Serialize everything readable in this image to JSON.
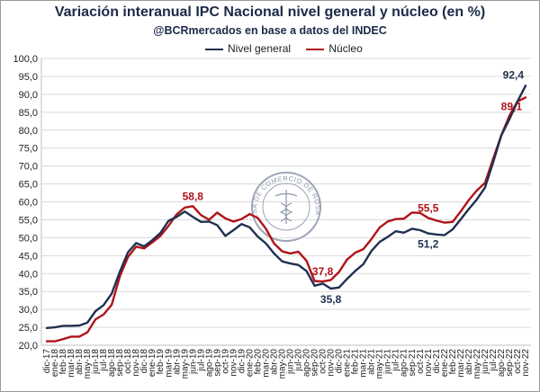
{
  "chart_data": {
    "type": "line",
    "title": "Variación interanual IPC Nacional nivel general y núcleo (en %)",
    "subtitle": "@BCRmercados en base a datos del INDEC",
    "watermark_text": "BOLSA DE COMERCIO DE ROSARIO",
    "ylim": [
      20,
      100
    ],
    "yticks": [
      "20,0",
      "25,0",
      "30,0",
      "35,0",
      "40,0",
      "45,0",
      "50,0",
      "55,0",
      "60,0",
      "65,0",
      "70,0",
      "75,0",
      "80,0",
      "85,0",
      "90,0",
      "95,0",
      "100,0"
    ],
    "grid": true,
    "legend_position": "top",
    "x": [
      "dic-17",
      "ene-18",
      "feb-18",
      "mar-18",
      "abr-18",
      "may-18",
      "jun-18",
      "jul-18",
      "ago-18",
      "sep-18",
      "oct-18",
      "nov-18",
      "dic-18",
      "ene-19",
      "feb-19",
      "mar-19",
      "abr-19",
      "may-19",
      "jun-19",
      "jul-19",
      "ago-19",
      "sep-19",
      "oct-19",
      "nov-19",
      "dic-19",
      "ene-20",
      "feb-20",
      "mar-20",
      "abr-20",
      "may-20",
      "jun-20",
      "jul-20",
      "ago-20",
      "sep-20",
      "oct-20",
      "nov-20",
      "dic-20",
      "ene-21",
      "feb-21",
      "mar-21",
      "abr-21",
      "may-21",
      "jun-21",
      "jul-21",
      "ago-21",
      "sep-21",
      "oct-21",
      "nov-21",
      "dic-21",
      "ene-22",
      "feb-22",
      "mar-22",
      "abr-22",
      "may-22",
      "jun-22",
      "jul-22",
      "ago-22",
      "sep-22",
      "oct-22",
      "nov-22"
    ],
    "series": [
      {
        "name": "Nivel general",
        "color": "#1f3050",
        "values": [
          24.8,
          25.0,
          25.4,
          25.4,
          25.5,
          26.3,
          29.5,
          31.2,
          34.4,
          40.5,
          45.9,
          48.5,
          47.6,
          49.3,
          51.3,
          54.7,
          55.8,
          57.3,
          55.8,
          54.4,
          54.5,
          53.5,
          50.5,
          52.1,
          53.8,
          52.9,
          50.3,
          48.4,
          45.6,
          43.4,
          42.8,
          42.4,
          40.7,
          36.6,
          37.2,
          35.8,
          36.1,
          38.5,
          40.7,
          42.6,
          46.3,
          48.8,
          50.2,
          51.8,
          51.4,
          52.5,
          52.1,
          51.2,
          50.9,
          50.7,
          52.3,
          55.1,
          58.0,
          60.7,
          64.0,
          71.0,
          78.5,
          83.0,
          88.0,
          92.4
        ]
      },
      {
        "name": "Núcleo",
        "color": "#b01318",
        "values": [
          21.1,
          21.1,
          21.7,
          22.4,
          22.4,
          23.6,
          27.2,
          28.6,
          31.3,
          39.2,
          44.6,
          47.5,
          47.0,
          48.7,
          50.5,
          53.3,
          56.5,
          58.4,
          58.8,
          56.3,
          55.0,
          57.0,
          55.4,
          54.5,
          55.2,
          56.6,
          55.5,
          52.5,
          48.4,
          46.2,
          45.6,
          46.1,
          43.6,
          37.9,
          37.8,
          38.2,
          40.4,
          43.9,
          45.8,
          46.8,
          49.6,
          52.8,
          54.5,
          55.2,
          55.3,
          57.0,
          56.9,
          55.5,
          54.8,
          54.2,
          54.4,
          57.3,
          60.5,
          63.2,
          65.3,
          72.0,
          78.5,
          84.0,
          88.0,
          89.1
        ]
      }
    ],
    "annotations": [
      {
        "text": "58,8",
        "series": 1,
        "index": 18,
        "position": "above"
      },
      {
        "text": "37,8",
        "series": 1,
        "index": 34,
        "position": "above"
      },
      {
        "text": "55,5",
        "series": 1,
        "index": 47,
        "position": "above"
      },
      {
        "text": "35,8",
        "series": 0,
        "index": 35,
        "position": "below"
      },
      {
        "text": "51,2",
        "series": 0,
        "index": 47,
        "position": "below"
      },
      {
        "text": "92,4",
        "series": 0,
        "index": 59,
        "position": "above-left"
      },
      {
        "text": "89,1",
        "series": 1,
        "index": 59,
        "position": "left"
      }
    ]
  }
}
